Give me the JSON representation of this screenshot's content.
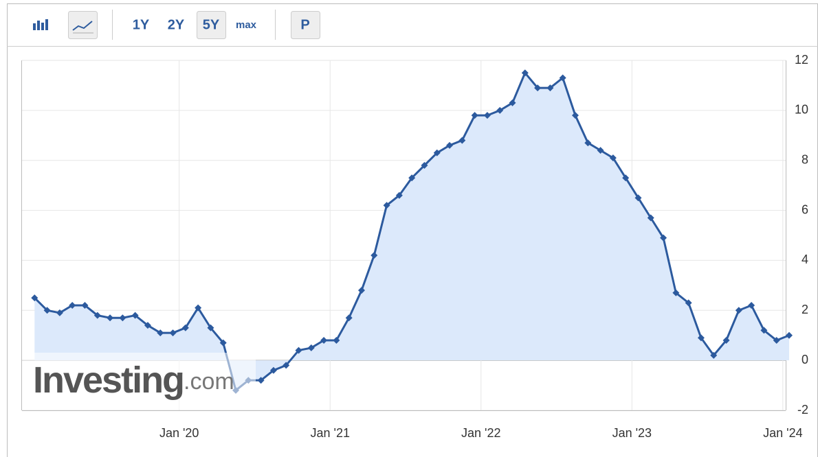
{
  "toolbar": {
    "ranges": [
      "1Y",
      "2Y",
      "5Y",
      "max"
    ],
    "p_button": "P"
  },
  "watermark": {
    "brand": "Investing",
    "suffix": ".com"
  },
  "chart_data": {
    "type": "area-line",
    "color": "#2c5a9e",
    "fill": "#dce9fb",
    "x": [
      "2019-01",
      "2019-02",
      "2019-03",
      "2019-04",
      "2019-05",
      "2019-06",
      "2019-07",
      "2019-08",
      "2019-09",
      "2019-10",
      "2019-11",
      "2019-12",
      "2020-01",
      "2020-02",
      "2020-03",
      "2020-04",
      "2020-05",
      "2020-06",
      "2020-07",
      "2020-08",
      "2020-09",
      "2020-10",
      "2020-11",
      "2020-12",
      "2021-01",
      "2021-02",
      "2021-03",
      "2021-04",
      "2021-05",
      "2021-06",
      "2021-07",
      "2021-08",
      "2021-09",
      "2021-10",
      "2021-11",
      "2021-12",
      "2022-01",
      "2022-02",
      "2022-03",
      "2022-04",
      "2022-05",
      "2022-06",
      "2022-07",
      "2022-08",
      "2022-09",
      "2022-10",
      "2022-11",
      "2022-12",
      "2023-01",
      "2023-02",
      "2023-03",
      "2023-04",
      "2023-05",
      "2023-06",
      "2023-07",
      "2023-08",
      "2023-09",
      "2023-10",
      "2023-11",
      "2023-12",
      "2024-01"
    ],
    "values": [
      2.5,
      2.0,
      1.9,
      2.2,
      2.2,
      1.8,
      1.7,
      1.7,
      1.8,
      1.4,
      1.1,
      1.1,
      1.3,
      2.1,
      1.3,
      0.7,
      -1.2,
      -0.8,
      -0.8,
      -0.4,
      -0.2,
      0.4,
      0.5,
      0.8,
      0.8,
      1.7,
      2.8,
      4.2,
      6.2,
      6.6,
      7.3,
      7.8,
      8.3,
      8.6,
      8.8,
      9.8,
      9.8,
      10.0,
      10.3,
      11.5,
      10.9,
      10.9,
      11.3,
      9.8,
      8.7,
      8.4,
      8.1,
      7.3,
      6.5,
      5.7,
      4.9,
      2.7,
      2.3,
      0.9,
      0.2,
      0.8,
      2.0,
      2.2,
      1.2,
      0.8,
      1.0
    ],
    "xlim": [
      "2018-12",
      "2024-01"
    ],
    "xticks": [
      {
        "value": "2020-01",
        "label": "Jan '20"
      },
      {
        "value": "2021-01",
        "label": "Jan '21"
      },
      {
        "value": "2022-01",
        "label": "Jan '22"
      },
      {
        "value": "2023-01",
        "label": "Jan '23"
      },
      {
        "value": "2024-01",
        "label": "Jan '24"
      }
    ],
    "ylim": [
      -2,
      12
    ],
    "yticks": [
      -2,
      0,
      2,
      4,
      6,
      8,
      10,
      12
    ],
    "grid": true
  }
}
